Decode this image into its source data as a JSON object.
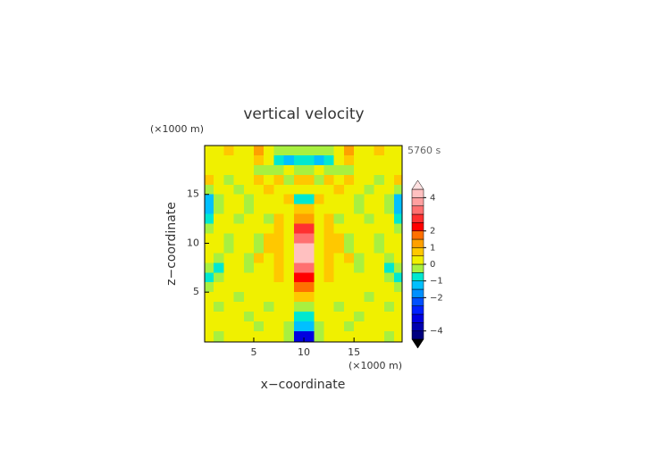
{
  "chart_data": {
    "type": "contourf",
    "title": "vertical velocity",
    "y_unit": "(×1000 m)",
    "x_unit": "(×1000 m)",
    "time_label": "5760 s",
    "xlabel": "x−coordinate",
    "ylabel": "z−coordinate",
    "xlim": [
      0.1,
      19.8
    ],
    "ylim": [
      -0.1,
      20
    ],
    "xticks": [
      5,
      10,
      15
    ],
    "yticks": [
      5,
      10,
      15
    ],
    "x": [
      0.5,
      1.5,
      2.5,
      3.5,
      4.5,
      5.5,
      6.5,
      7.5,
      8.5,
      9.5,
      10.5,
      11.5,
      12.5,
      13.5,
      14.5,
      15.5,
      16.5,
      17.5,
      18.5,
      19.5
    ],
    "y": [
      19.5,
      18.5,
      17.5,
      16.5,
      15.5,
      14.5,
      13.5,
      12.5,
      11.5,
      10.5,
      9.5,
      8.5,
      7.5,
      6.5,
      5.5,
      4.5,
      3.5,
      2.5,
      1.5,
      0.5
    ],
    "values": [
      [
        0.2,
        0.2,
        0.5,
        0.3,
        0.2,
        1,
        0.3,
        -0.3,
        -0.5,
        -0.3,
        -0.3,
        -0.5,
        -0.3,
        0.3,
        1,
        0.2,
        0.3,
        0.5,
        0.2,
        0.2
      ],
      [
        0.2,
        0.1,
        0.3,
        0.2,
        0.3,
        0.5,
        0.2,
        -0.6,
        -1.2,
        -0.8,
        -0.8,
        -1.2,
        -0.6,
        0.2,
        0.5,
        0.3,
        0.2,
        0.3,
        0.1,
        0.2
      ],
      [
        0.3,
        0.2,
        0.2,
        0.2,
        0.2,
        -0.2,
        -0.5,
        -0.2,
        0.3,
        -0.2,
        -0.2,
        0.3,
        -0.2,
        -0.5,
        -0.2,
        0.2,
        0.2,
        0.2,
        0.2,
        0.3
      ],
      [
        0.8,
        0.2,
        -0.2,
        0.3,
        0.2,
        0.6,
        0.2,
        0.7,
        -0.3,
        0.6,
        0.6,
        -0.3,
        0.7,
        0.2,
        0.6,
        0.2,
        0.3,
        -0.2,
        0.2,
        0.8
      ],
      [
        -0.3,
        0.3,
        0.2,
        -0.2,
        0.3,
        0.2,
        0.7,
        0.2,
        0.3,
        0.2,
        0.2,
        0.3,
        0.2,
        0.7,
        0.2,
        0.3,
        -0.2,
        0.2,
        0.3,
        -0.3
      ],
      [
        -1.2,
        -0.3,
        0.2,
        0.3,
        -0.2,
        0.4,
        0.2,
        0.3,
        0.5,
        -0.8,
        -0.8,
        0.5,
        0.3,
        0.2,
        0.4,
        -0.2,
        0.3,
        0.2,
        -0.3,
        -1.2
      ],
      [
        -1.5,
        -0.4,
        0.2,
        0.2,
        -0.2,
        0.2,
        0.3,
        0.3,
        0.3,
        0.8,
        0.8,
        0.3,
        0.3,
        0.3,
        0.2,
        -0.2,
        0.2,
        0.2,
        -0.4,
        -1.5
      ],
      [
        -0.8,
        0.2,
        0.2,
        -0.2,
        0.2,
        0.2,
        -0.2,
        0.5,
        0.3,
        1.2,
        1.2,
        0.3,
        0.5,
        -0.2,
        0.2,
        0.2,
        -0.2,
        0.2,
        0.2,
        -0.8
      ],
      [
        -0.2,
        0.2,
        0.2,
        0.2,
        0.3,
        0.2,
        0.2,
        0.8,
        0.3,
        2.5,
        2.5,
        0.3,
        0.8,
        0.2,
        0.2,
        0.3,
        0.2,
        0.2,
        0.2,
        -0.2
      ],
      [
        0.2,
        0.3,
        -0.2,
        0.2,
        0.3,
        -0.2,
        0.7,
        0.9,
        0.2,
        3.2,
        3.2,
        0.2,
        0.9,
        0.7,
        -0.2,
        0.3,
        0.2,
        -0.2,
        0.3,
        0.2
      ],
      [
        0.3,
        0.2,
        -0.3,
        0.2,
        0.2,
        -0.3,
        0.8,
        0.8,
        0.3,
        4.2,
        4.2,
        0.3,
        0.8,
        0.8,
        -0.3,
        0.2,
        0.2,
        -0.3,
        0.2,
        0.3
      ],
      [
        0.2,
        -0.2,
        0.2,
        0.2,
        -0.3,
        0.6,
        0.2,
        0.8,
        0.3,
        4,
        4,
        0.3,
        0.8,
        0.2,
        0.6,
        -0.3,
        0.2,
        0.2,
        -0.2,
        0.2
      ],
      [
        -0.3,
        -0.6,
        0.2,
        0.2,
        -0.2,
        0.3,
        0.2,
        0.6,
        0.2,
        3,
        3,
        0.2,
        0.6,
        0.2,
        0.3,
        -0.2,
        0.2,
        0.2,
        -0.6,
        -0.3
      ],
      [
        -0.8,
        -0.4,
        0.2,
        0.3,
        0.2,
        0.2,
        0.3,
        0.6,
        0.2,
        2.2,
        2.2,
        0.2,
        0.6,
        0.3,
        0.2,
        0.2,
        0.3,
        0.2,
        -0.4,
        -0.8
      ],
      [
        -0.3,
        0.2,
        0.3,
        0.3,
        0.2,
        0.2,
        0.2,
        0.3,
        0.2,
        1.5,
        1.5,
        0.2,
        0.3,
        0.2,
        0.2,
        0.2,
        0.3,
        0.3,
        0.2,
        -0.3
      ],
      [
        0.2,
        0.2,
        0.2,
        -0.2,
        0.2,
        0.2,
        0.2,
        0.2,
        0.3,
        0.8,
        0.8,
        0.3,
        0.2,
        0.2,
        0.2,
        0.2,
        -0.2,
        0.2,
        0.2,
        0.2
      ],
      [
        0.2,
        -0.2,
        0.3,
        0.2,
        0.2,
        0.2,
        -0.2,
        0.2,
        0.2,
        -0.3,
        -0.3,
        0.2,
        0.2,
        -0.2,
        0.2,
        0.2,
        0.2,
        0.3,
        -0.2,
        0.2
      ],
      [
        0.2,
        0.2,
        0.3,
        0.2,
        -0.2,
        0.2,
        0.2,
        0.3,
        0.2,
        -0.8,
        -0.8,
        0.2,
        0.3,
        0.2,
        0.2,
        -0.2,
        0.2,
        0.3,
        0.2,
        0.2
      ],
      [
        0.2,
        0.2,
        0.2,
        0.3,
        0.2,
        -0.2,
        0.2,
        0.2,
        -0.3,
        -1.5,
        -1.5,
        -0.3,
        0.2,
        0.2,
        -0.2,
        0.2,
        0.3,
        0.2,
        0.2,
        0.2
      ],
      [
        0.2,
        -0.3,
        0.2,
        0.2,
        0.2,
        0.2,
        0.3,
        0.2,
        -0.3,
        -3.2,
        -3.2,
        -0.3,
        0.2,
        0.3,
        0.2,
        0.2,
        0.2,
        0.2,
        -0.3,
        0.2
      ]
    ],
    "levels": [
      -4.5,
      -4,
      -3.5,
      -3,
      -2.5,
      -2,
      -1.5,
      -1,
      -0.5,
      0,
      0.5,
      1,
      1.5,
      2,
      2.5,
      3,
      3.5,
      4,
      4.5
    ],
    "colors": [
      "#000080",
      "#0000b0",
      "#0000e0",
      "#0020ff",
      "#0050ff",
      "#0090ff",
      "#00c0ff",
      "#00e8d0",
      "#a8f040",
      "#f0f000",
      "#ffc800",
      "#ffa000",
      "#ff7000",
      "#ff0000",
      "#ff3030",
      "#ff7070",
      "#ffa0a0",
      "#ffc0c0"
    ],
    "extend_colors": [
      "#000000",
      "#ffe0e0"
    ],
    "colorbar_ticks": [
      4,
      2,
      1,
      0,
      {
        "value": -1,
        "label": "−1"
      },
      {
        "value": -2,
        "label": "−2"
      },
      {
        "value": -4,
        "label": "−4"
      }
    ]
  }
}
